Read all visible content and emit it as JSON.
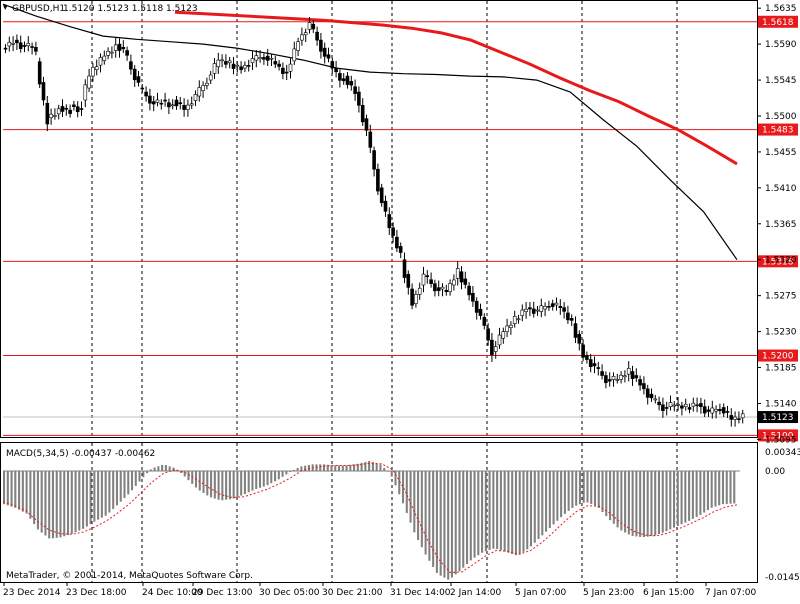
{
  "header": {
    "symbol_label": "GBPUSD,H1",
    "ohlc_values": "1.5120 1.5123 1.5118 1.5123"
  },
  "macd": {
    "label": "MACD(5,34,5) -0.00437 -0.00462",
    "axis_top": "0.00343",
    "axis_zero": "0.00",
    "axis_bottom": "-0.01453"
  },
  "copyright": "MetaTrader, © 2001-2014, MetaQuotes Software Corp.",
  "colors": {
    "candle": "#000000",
    "bull_body": "#ffffff",
    "bear_body": "#000000",
    "ma_fast": "#000000",
    "ma_slow": "#e8191b",
    "level_line": "#e8191b",
    "grid": "#000000",
    "current_price_line": "#c0c0c0",
    "macd_hist": "#808080",
    "macd_signal": "#e8191b"
  },
  "chart_data": {
    "type": "candlestick",
    "title": "GBPUSD,H1",
    "xlabel": "",
    "ylabel": "",
    "ylim": [
      1.5098,
      1.5644
    ],
    "y_ticks": [
      "1.5635",
      "1.5590",
      "1.5545",
      "1.5500",
      "1.5455",
      "1.5410",
      "1.5365",
      "1.5320",
      "1.5275",
      "1.5230",
      "1.5185",
      "1.5140",
      "1.5095"
    ],
    "x_ticks": [
      "23 Dec 2014",
      "23 Dec 18:00",
      "24 Dec 10:00",
      "29 Dec 13:00",
      "30 Dec 05:00",
      "30 Dec 21:00",
      "31 Dec 14:00",
      "2 Jan 14:00",
      "5 Jan 07:00",
      "5 Jan 23:00",
      "6 Jan 15:00",
      "7 Jan 07:00"
    ],
    "current_price": "1.5123",
    "horizontal_levels": [
      "1.5618",
      "1.5483",
      "1.5318",
      "1.5200",
      "1.5100"
    ],
    "price_path": [
      [
        1.5585,
        1.5593
      ],
      [
        1.5595,
        1.5585
      ],
      [
        1.5588,
        1.5585
      ],
      [
        1.5568,
        1.549
      ],
      [
        1.5498,
        1.5505
      ],
      [
        1.5512,
        1.5505
      ],
      [
        1.5514,
        1.5507
      ],
      [
        1.552,
        1.5565
      ],
      [
        1.5558,
        1.5575
      ],
      [
        1.5576,
        1.5585
      ],
      [
        1.559,
        1.5578
      ],
      [
        1.5568,
        1.554
      ],
      [
        1.5535,
        1.552
      ],
      [
        1.5518,
        1.5515
      ],
      [
        1.552,
        1.551
      ],
      [
        1.552,
        1.551
      ],
      [
        1.5508,
        1.5525
      ],
      [
        1.5525,
        1.5545
      ],
      [
        1.5545,
        1.557
      ],
      [
        1.557,
        1.5565
      ],
      [
        1.5565,
        1.556
      ],
      [
        1.556,
        1.557
      ],
      [
        1.557,
        1.5575
      ],
      [
        1.5575,
        1.5565
      ],
      [
        1.5565,
        1.555
      ],
      [
        1.5556,
        1.5595
      ],
      [
        1.5595,
        1.5615
      ],
      [
        1.5615,
        1.5585
      ],
      [
        1.5585,
        1.556
      ],
      [
        1.556,
        1.554
      ],
      [
        1.555,
        1.553
      ],
      [
        1.553,
        1.548
      ],
      [
        1.548,
        1.541
      ],
      [
        1.541,
        1.536
      ],
      [
        1.536,
        1.5325
      ],
      [
        1.532,
        1.5265
      ],
      [
        1.5265,
        1.53
      ],
      [
        1.53,
        1.5285
      ],
      [
        1.5285,
        1.528
      ],
      [
        1.528,
        1.5305
      ],
      [
        1.5305,
        1.5278
      ],
      [
        1.5278,
        1.5248
      ],
      [
        1.5248,
        1.5205
      ],
      [
        1.5205,
        1.523
      ],
      [
        1.523,
        1.5245
      ],
      [
        1.5245,
        1.526
      ],
      [
        1.526,
        1.5255
      ],
      [
        1.5255,
        1.5265
      ],
      [
        1.5265,
        1.526
      ],
      [
        1.526,
        1.524
      ],
      [
        1.524,
        1.52
      ],
      [
        1.52,
        1.5185
      ],
      [
        1.5185,
        1.517
      ],
      [
        1.517,
        1.517
      ],
      [
        1.517,
        1.518
      ],
      [
        1.518,
        1.5165
      ],
      [
        1.5165,
        1.5145
      ],
      [
        1.5145,
        1.5135
      ],
      [
        1.5135,
        1.5138
      ],
      [
        1.5138,
        1.5135
      ],
      [
        1.5135,
        1.514
      ],
      [
        1.514,
        1.5128
      ],
      [
        1.5128,
        1.5135
      ],
      [
        1.5135,
        1.512
      ],
      [
        1.512,
        1.5123
      ]
    ],
    "series": [
      {
        "values": [
          1.564,
          1.5625,
          1.5612,
          1.56,
          1.5596,
          1.5593,
          1.559,
          1.5585,
          1.5578,
          1.557,
          1.556,
          1.5555,
          1.5553,
          1.5552,
          1.555,
          1.5549,
          1.5545,
          1.553,
          1.5495,
          1.5462,
          1.542,
          1.538,
          1.532
        ]
      },
      {
        "values": [
          1.563,
          1.5628,
          1.5626,
          1.5624,
          1.5622,
          1.562,
          1.5617,
          1.5614,
          1.561,
          1.5604,
          1.5595,
          1.558,
          1.5565,
          1.5548,
          1.5532,
          1.5518,
          1.55,
          1.5483,
          1.5462,
          1.544
        ]
      }
    ],
    "macd_hist": [
      -0.0045,
      -0.005,
      -0.0058,
      -0.008,
      -0.0092,
      -0.009,
      -0.0085,
      -0.0078,
      -0.0068,
      -0.006,
      -0.0045,
      -0.003,
      -0.0012,
      0.0005,
      0.0012,
      0.0005,
      -0.001,
      -0.0025,
      -0.0035,
      -0.004,
      -0.0038,
      -0.0032,
      -0.0025,
      -0.002,
      -0.0012,
      -0.0002,
      0.0008,
      0.0012,
      0.0012,
      0.001,
      0.001,
      0.0013,
      0.0018,
      0.0012,
      -0.0008,
      -0.0045,
      -0.0085,
      -0.0115,
      -0.014,
      -0.0148,
      -0.0135,
      -0.012,
      -0.011,
      -0.0105,
      -0.011,
      -0.0115,
      -0.0105,
      -0.009,
      -0.0075,
      -0.006,
      -0.0048,
      -0.0042,
      -0.0048,
      -0.0065,
      -0.008,
      -0.0088,
      -0.009,
      -0.0088,
      -0.0082,
      -0.0075,
      -0.0068,
      -0.006,
      -0.005,
      -0.0045,
      -0.0044
    ],
    "macd_signal": [
      -0.0042,
      -0.0047,
      -0.0054,
      -0.0068,
      -0.008,
      -0.0085,
      -0.0086,
      -0.0083,
      -0.0076,
      -0.0068,
      -0.0057,
      -0.0045,
      -0.003,
      -0.0015,
      -0.0003,
      0.0002,
      -0.0003,
      -0.0013,
      -0.0023,
      -0.0032,
      -0.0036,
      -0.0035,
      -0.003,
      -0.0025,
      -0.0018,
      -0.001,
      0.0,
      0.0006,
      0.0009,
      0.001,
      0.001,
      0.0011,
      0.0014,
      0.0013,
      0.0002,
      -0.0025,
      -0.006,
      -0.0093,
      -0.012,
      -0.0138,
      -0.0137,
      -0.0127,
      -0.0116,
      -0.0108,
      -0.0109,
      -0.0113,
      -0.0108,
      -0.0097,
      -0.0083,
      -0.0068,
      -0.0055,
      -0.0047,
      -0.0048,
      -0.0058,
      -0.0072,
      -0.0082,
      -0.0087,
      -0.0088,
      -0.0084,
      -0.0078,
      -0.0071,
      -0.0064,
      -0.0055,
      -0.0049,
      -0.0046
    ]
  }
}
